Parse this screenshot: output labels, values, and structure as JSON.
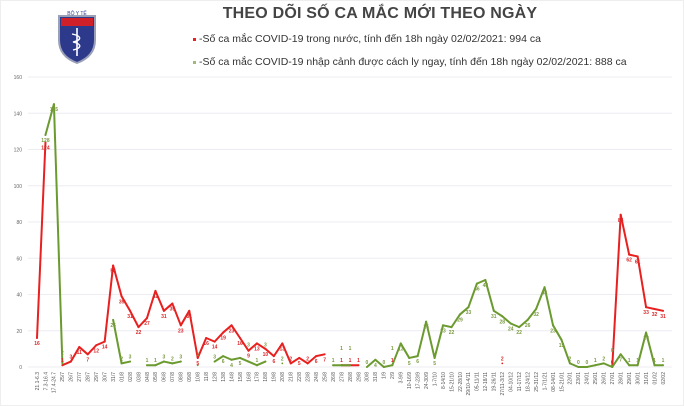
{
  "header": {
    "title": "THEO DÕI SỐ CA MẮC MỚI THEO NGÀY",
    "logo_text": "BỘ Y TẾ",
    "legend": [
      {
        "label": "-Số ca mắc COVID-19 trong nước, tính đến 18h ngày 02/02/2021: 994 ca",
        "color": "#e8201f"
      },
      {
        "label": "-Số ca mắc COVID-19 nhập cảnh được cách ly ngay, tính đến 18h ngày 02/02/2021: 888 ca",
        "color": "#6b9a2f"
      }
    ]
  },
  "chart_data": {
    "type": "line",
    "title": "THEO DÕI SỐ CA MẮC MỚI THEO NGÀY",
    "xlabel": "",
    "ylabel": "",
    "ylim": [
      0,
      160
    ],
    "yticks": [
      0,
      20,
      40,
      60,
      80,
      100,
      120,
      140,
      160
    ],
    "grid": true,
    "legend_placement": "top",
    "categories": [
      "21.1-6.3",
      "7.3-16.4",
      "17.4-24.7",
      "25/7",
      "26/7",
      "27/7",
      "28/7",
      "29/7",
      "30/7",
      "31/7",
      "01/8",
      "02/8",
      "03/8",
      "04/8",
      "05/8",
      "06/8",
      "07/8",
      "08/8",
      "09/8",
      "10/8",
      "11/8",
      "12/8",
      "13/8",
      "14/8",
      "15/8",
      "16/8",
      "17/8",
      "18/8",
      "19/8",
      "20/8",
      "21/8",
      "22/8",
      "23/8",
      "24/8",
      "25/8",
      "26/8",
      "27/8",
      "28/8",
      "29/8",
      "30/8",
      "31/8",
      "1/9",
      "2/9",
      "3-9/9",
      "10-16/9",
      "17-23/9",
      "24-30/9",
      "1-7/10",
      "8-14/10",
      "15-21/10",
      "22-28/10",
      "29/10-4/11",
      "05-11/11",
      "12-18/11",
      "19-26/11",
      "27/11-3/12",
      "04-10/12",
      "11-17/12",
      "18-24/12",
      "25-31/12",
      "1-7/1/21",
      "08-14/01",
      "15-21/01",
      "22/01",
      "23/01",
      "24/01",
      "25/01",
      "26/01",
      "27/01",
      "28/01",
      "29/01",
      "30/01",
      "31/01",
      "01/02",
      "02/02"
    ],
    "series": [
      {
        "name": "Số ca mắc COVID-19 trong nước",
        "color": "#e8201f",
        "values": [
          16,
          124,
          null,
          1,
          3,
          11,
          7,
          12,
          14,
          56,
          39,
          31,
          22,
          27,
          42,
          31,
          35,
          23,
          31,
          5,
          16,
          14,
          19,
          23,
          16,
          9,
          13,
          10,
          6,
          13,
          2,
          5,
          2,
          6,
          7,
          null,
          1,
          1,
          1,
          null,
          null,
          null,
          1,
          null,
          null,
          null,
          null,
          null,
          null,
          null,
          null,
          null,
          null,
          null,
          null,
          2,
          null,
          null,
          null,
          null,
          null,
          null,
          null,
          null,
          null,
          null,
          null,
          null,
          0,
          84,
          62,
          61,
          33,
          32,
          31
        ]
      },
      {
        "name": "Số ca mắc COVID-19 nhập cảnh được cách ly ngay",
        "color": "#6b9a2f",
        "values": [
          null,
          128,
          145,
          2,
          null,
          null,
          null,
          null,
          null,
          26,
          2,
          3,
          null,
          1,
          1,
          3,
          2,
          3,
          null,
          1,
          null,
          3,
          6,
          4,
          5,
          3,
          1,
          3,
          null,
          2,
          null,
          null,
          null,
          null,
          null,
          1,
          1,
          1,
          null,
          0,
          4,
          0,
          1,
          13,
          5,
          6,
          25,
          5,
          23,
          22,
          29,
          33,
          46,
          48,
          31,
          28,
          24,
          22,
          26,
          32,
          44,
          23,
          15,
          2,
          0,
          0,
          1,
          2,
          0,
          7,
          1,
          1,
          19,
          1,
          1
        ]
      }
    ]
  }
}
